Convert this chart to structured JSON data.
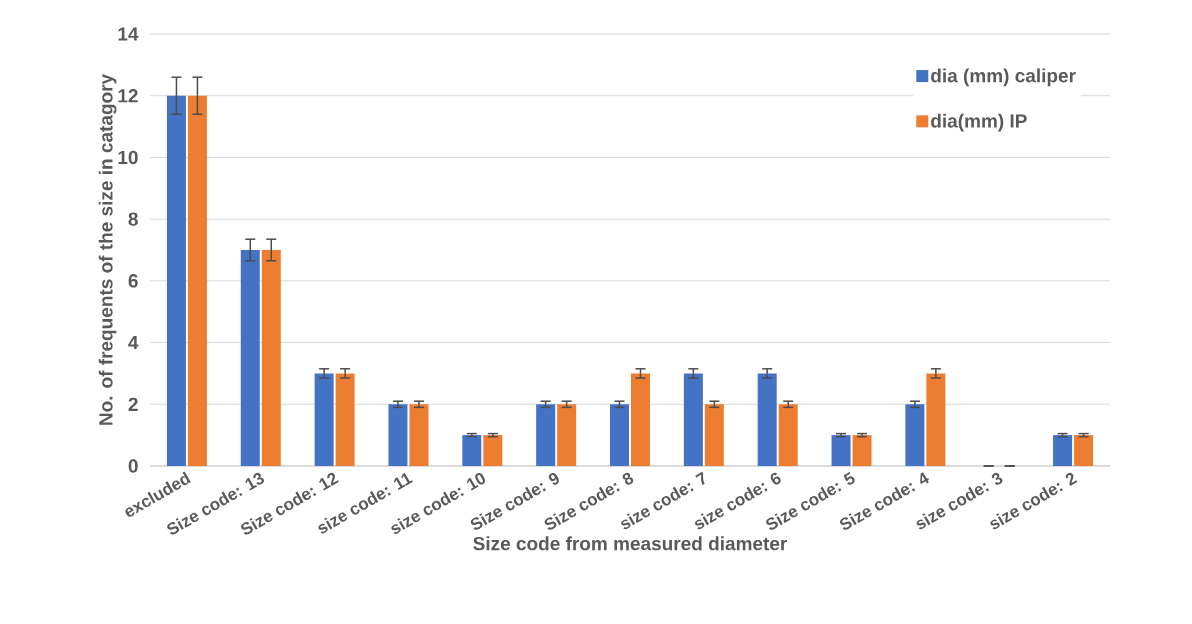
{
  "chart_data": {
    "type": "bar",
    "xlabel": "Size code from measured diameter",
    "ylabel": "No. of frequents of the size in catagory",
    "categories": [
      "excluded",
      "Size code: 13",
      "Size code: 12",
      "size code: 11",
      "size code: 10",
      "Size code: 9",
      "Size code: 8",
      "size code: 7",
      "size code: 6",
      "Size code: 5",
      "Size code: 4",
      "size code: 3",
      "size code: 2"
    ],
    "series": [
      {
        "name": "dia (mm) caliper",
        "color": "#4472c4",
        "values": [
          12,
          7,
          3,
          2,
          1,
          2,
          2,
          3,
          3,
          1,
          2,
          0,
          1
        ],
        "errors": [
          0.6,
          0.35,
          0.15,
          0.1,
          0.05,
          0.1,
          0.1,
          0.15,
          0.15,
          0.05,
          0.1,
          null,
          0.05
        ]
      },
      {
        "name": "dia(mm) IP",
        "color": "#ed7d31",
        "values": [
          12,
          7,
          3,
          2,
          1,
          2,
          3,
          2,
          2,
          1,
          3,
          0,
          1
        ],
        "errors": [
          0.6,
          0.35,
          0.15,
          0.1,
          0.05,
          0.1,
          0.15,
          0.1,
          0.1,
          0.05,
          0.15,
          null,
          0.05
        ]
      }
    ],
    "ylim": [
      0,
      14
    ],
    "yticks": [
      0,
      2,
      4,
      6,
      8,
      10,
      12,
      14
    ],
    "grid": "y",
    "legend": "top right"
  }
}
